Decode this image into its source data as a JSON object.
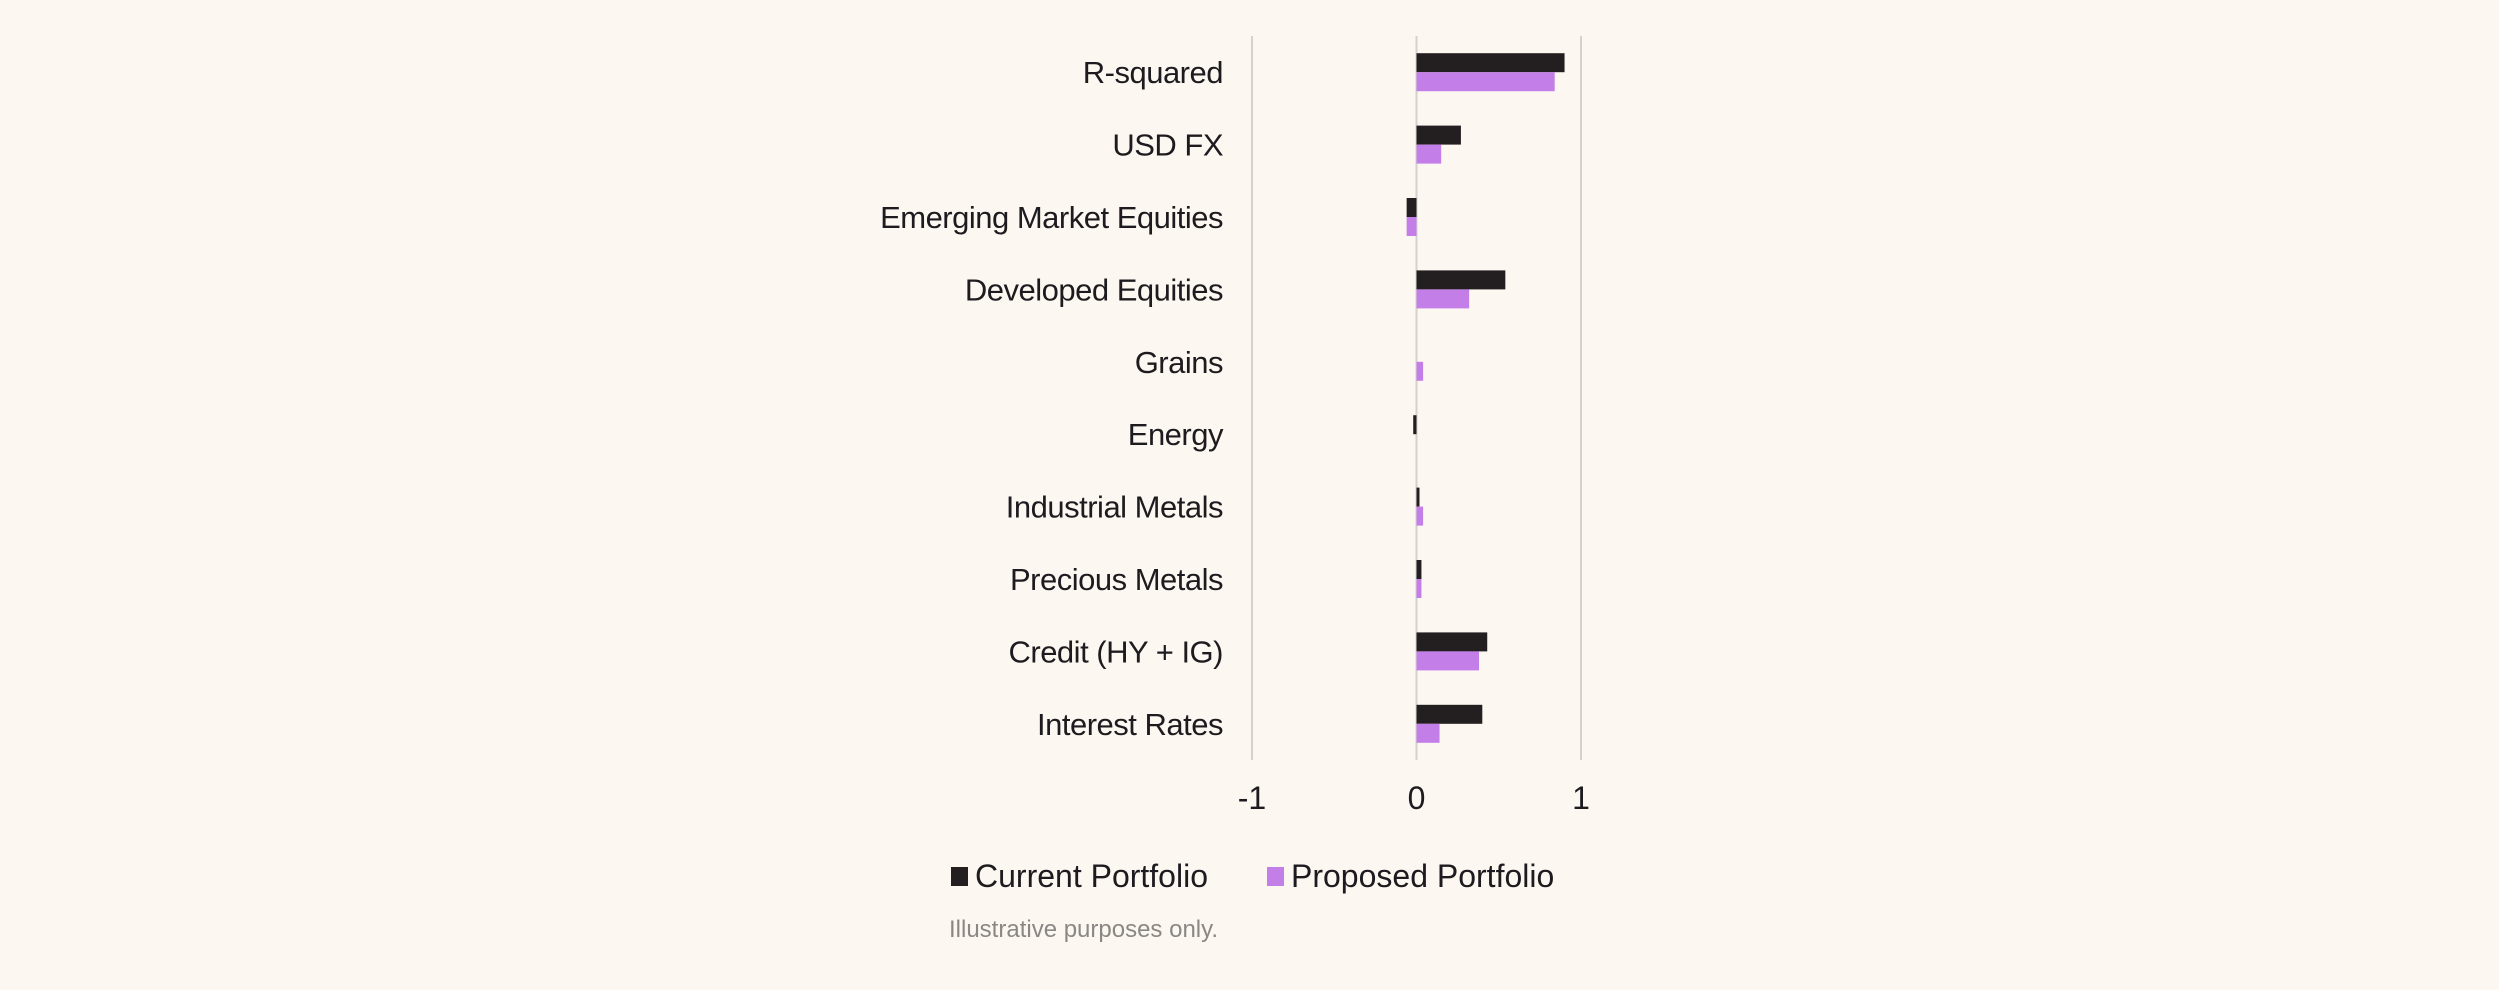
{
  "chart_data": {
    "type": "bar",
    "orientation": "horizontal",
    "categories": [
      "R-squared",
      "USD FX",
      "Emerging Market Equities",
      "Developed Equities",
      "Grains",
      "Energy",
      "Industrial Metals",
      "Precious Metals",
      "Credit (HY + IG)",
      "Interest Rates"
    ],
    "series": [
      {
        "name": "Current Portfolio",
        "color": "#231f20",
        "values": [
          0.9,
          0.27,
          -0.06,
          0.54,
          0.0,
          -0.02,
          0.01,
          0.03,
          0.43,
          0.4
        ]
      },
      {
        "name": "Proposed Portfolio",
        "color": "#c47ee8",
        "values": [
          0.84,
          0.15,
          -0.06,
          0.32,
          0.04,
          0.0,
          0.04,
          0.03,
          0.38,
          0.14
        ]
      }
    ],
    "xlim": [
      -1,
      1
    ],
    "xticks": [
      "-1",
      "0",
      "1"
    ],
    "grid": true,
    "legend_position": "bottom",
    "note": "Illustrative purposes only."
  }
}
